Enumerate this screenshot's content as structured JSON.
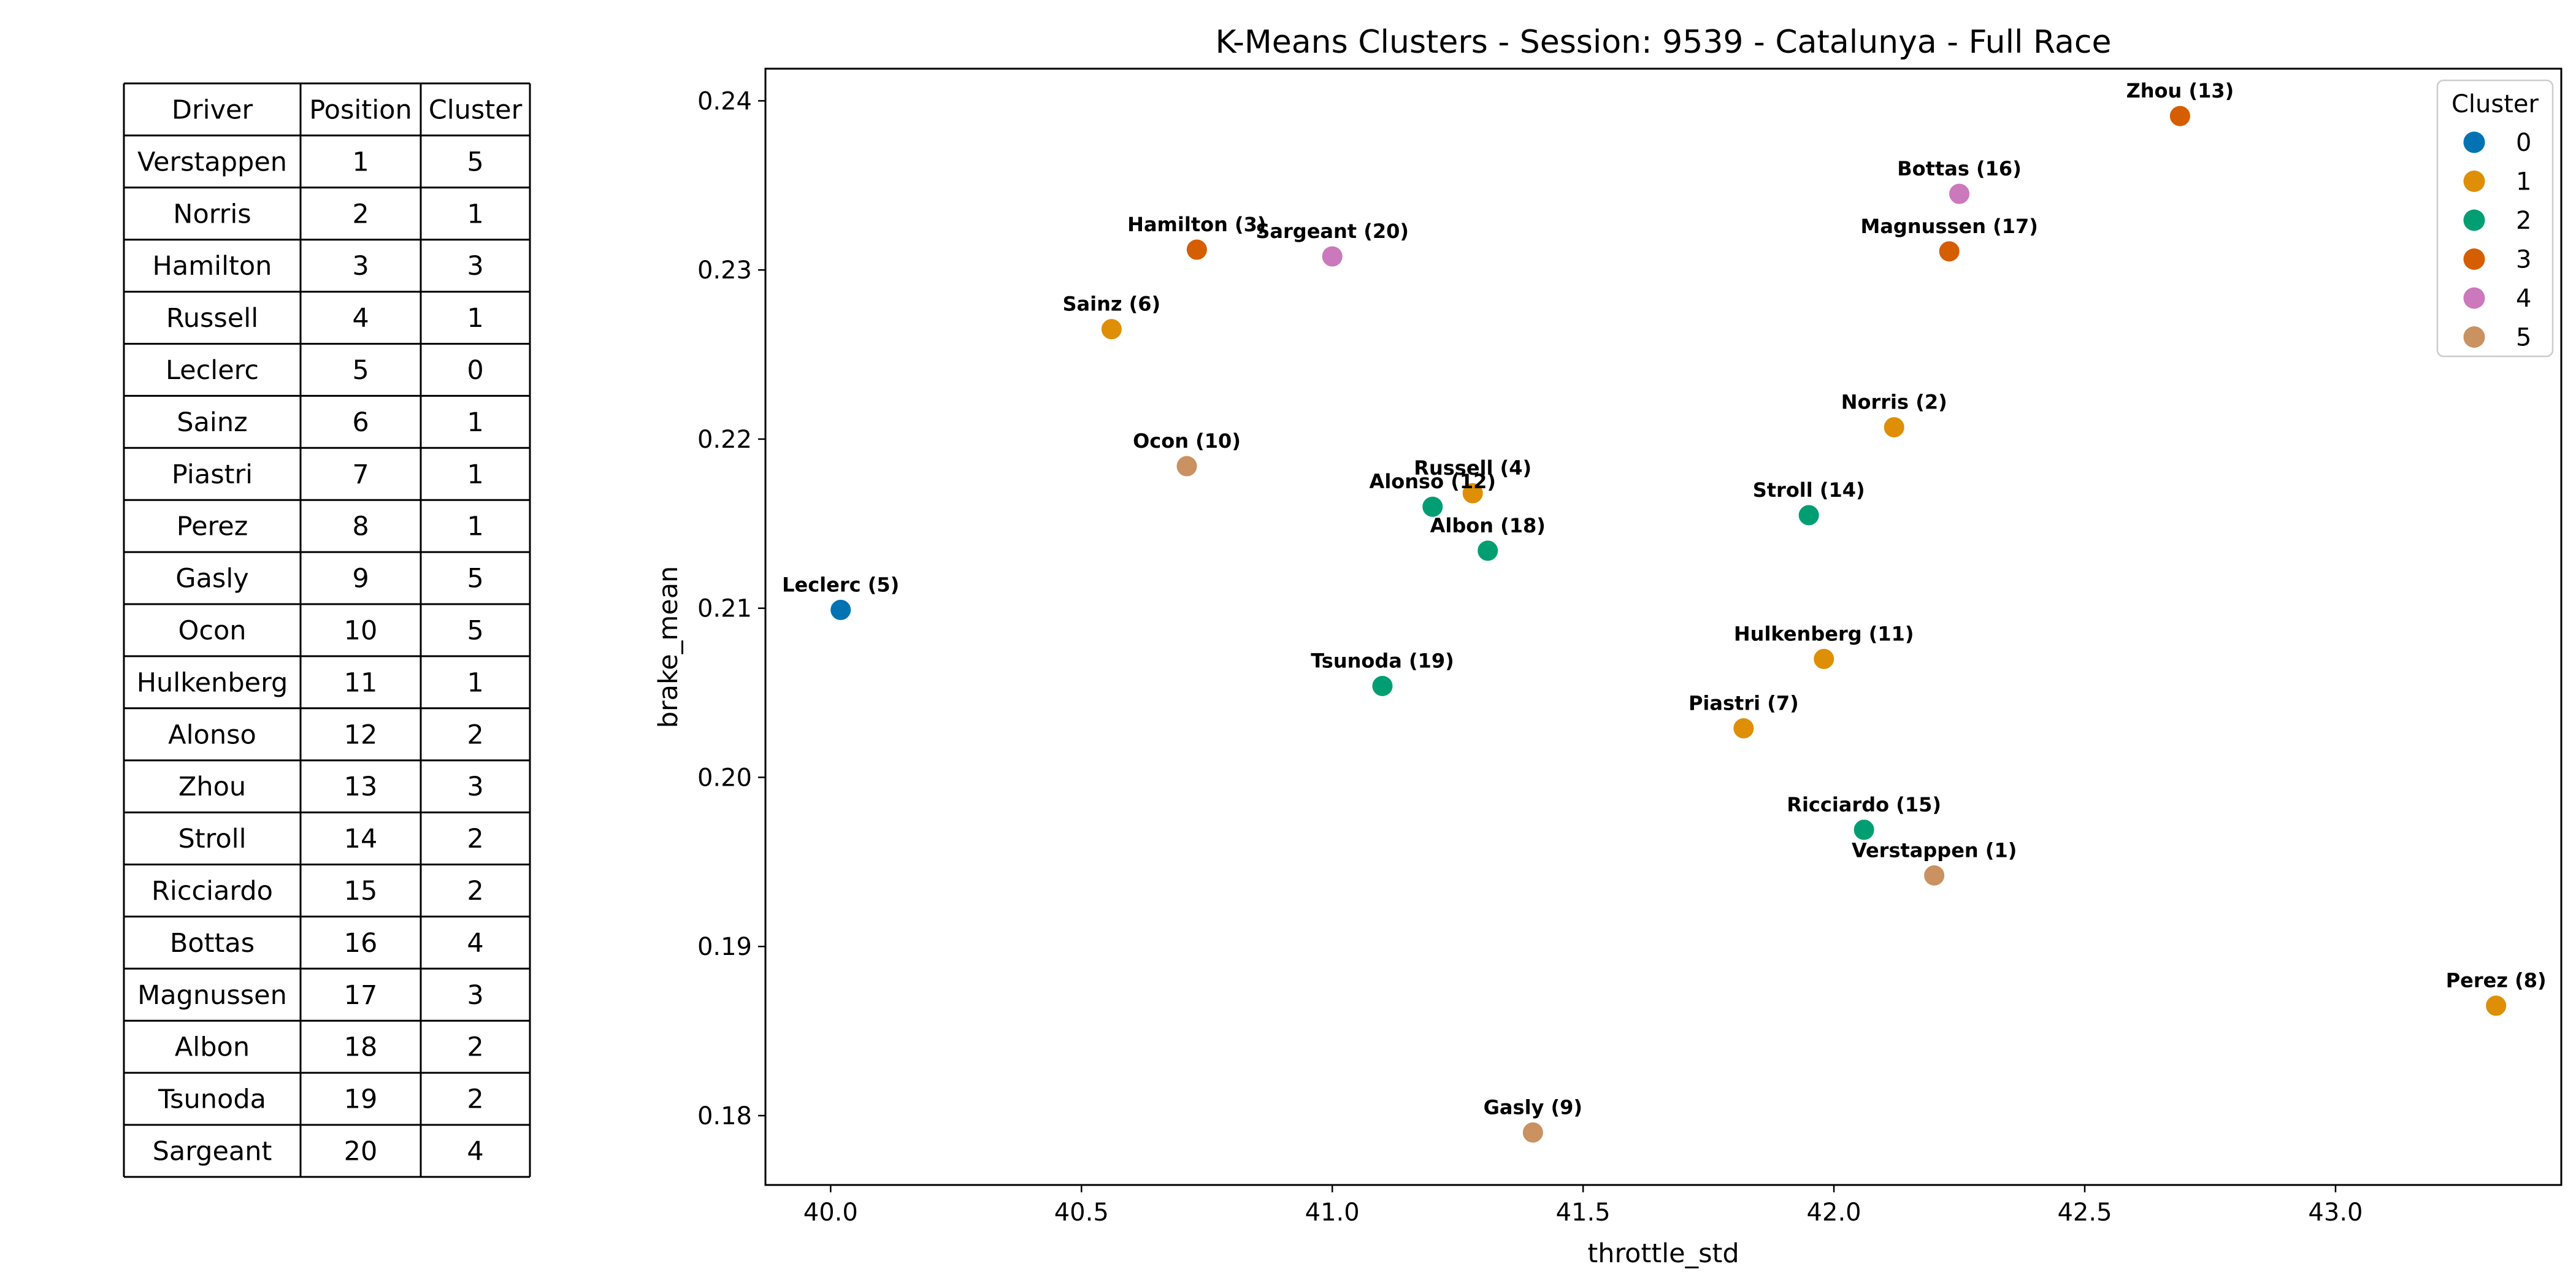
{
  "table": {
    "headers": [
      "Driver",
      "Position",
      "Cluster"
    ],
    "rows": [
      [
        "Verstappen",
        "1",
        "5"
      ],
      [
        "Norris",
        "2",
        "1"
      ],
      [
        "Hamilton",
        "3",
        "3"
      ],
      [
        "Russell",
        "4",
        "1"
      ],
      [
        "Leclerc",
        "5",
        "0"
      ],
      [
        "Sainz",
        "6",
        "1"
      ],
      [
        "Piastri",
        "7",
        "1"
      ],
      [
        "Perez",
        "8",
        "1"
      ],
      [
        "Gasly",
        "9",
        "5"
      ],
      [
        "Ocon",
        "10",
        "5"
      ],
      [
        "Hulkenberg",
        "11",
        "1"
      ],
      [
        "Alonso",
        "12",
        "2"
      ],
      [
        "Zhou",
        "13",
        "3"
      ],
      [
        "Stroll",
        "14",
        "2"
      ],
      [
        "Ricciardo",
        "15",
        "2"
      ],
      [
        "Bottas",
        "16",
        "4"
      ],
      [
        "Magnussen",
        "17",
        "3"
      ],
      [
        "Albon",
        "18",
        "2"
      ],
      [
        "Tsunoda",
        "19",
        "2"
      ],
      [
        "Sargeant",
        "20",
        "4"
      ]
    ]
  },
  "chart_data": {
    "type": "scatter",
    "title": "K-Means Clusters - Session: 9539 - Catalunya - Full Race",
    "xlabel": "throttle_std",
    "ylabel": "brake_mean",
    "xlim": [
      39.87,
      43.45
    ],
    "ylim": [
      0.1759,
      0.2419
    ],
    "xticks": [
      40.0,
      40.5,
      41.0,
      41.5,
      42.0,
      42.5,
      43.0
    ],
    "xtick_labels": [
      "40.0",
      "40.5",
      "41.0",
      "41.5",
      "42.0",
      "42.5",
      "43.0"
    ],
    "yticks": [
      0.18,
      0.19,
      0.2,
      0.21,
      0.22,
      0.23,
      0.24
    ],
    "ytick_labels": [
      "0.18",
      "0.19",
      "0.20",
      "0.21",
      "0.22",
      "0.23",
      "0.24"
    ],
    "grid": false,
    "legend": {
      "title": "Cluster",
      "placement": "top-right",
      "entries": [
        "0",
        "1",
        "2",
        "3",
        "4",
        "5"
      ]
    },
    "cluster_colors": [
      "#0173b2",
      "#de8f05",
      "#029e73",
      "#d55e00",
      "#cc78bc",
      "#ca9161"
    ],
    "points": [
      {
        "label": "Verstappen (1)",
        "x": 42.2,
        "y": 0.1942,
        "cluster": 5
      },
      {
        "label": "Norris (2)",
        "x": 42.12,
        "y": 0.2207,
        "cluster": 1
      },
      {
        "label": "Hamilton (3)",
        "x": 40.73,
        "y": 0.2312,
        "cluster": 3
      },
      {
        "label": "Russell (4)",
        "x": 41.28,
        "y": 0.2168,
        "cluster": 1
      },
      {
        "label": "Leclerc (5)",
        "x": 40.02,
        "y": 0.2099,
        "cluster": 0
      },
      {
        "label": "Sainz (6)",
        "x": 40.56,
        "y": 0.2265,
        "cluster": 1
      },
      {
        "label": "Piastri (7)",
        "x": 41.82,
        "y": 0.2029,
        "cluster": 1
      },
      {
        "label": "Perez (8)",
        "x": 43.32,
        "y": 0.1865,
        "cluster": 1
      },
      {
        "label": "Gasly (9)",
        "x": 41.4,
        "y": 0.179,
        "cluster": 5
      },
      {
        "label": "Ocon (10)",
        "x": 40.71,
        "y": 0.2184,
        "cluster": 5
      },
      {
        "label": "Hulkenberg (11)",
        "x": 41.98,
        "y": 0.207,
        "cluster": 1
      },
      {
        "label": "Alonso (12)",
        "x": 41.2,
        "y": 0.216,
        "cluster": 2
      },
      {
        "label": "Zhou (13)",
        "x": 42.69,
        "y": 0.2391,
        "cluster": 3
      },
      {
        "label": "Stroll (14)",
        "x": 41.95,
        "y": 0.2155,
        "cluster": 2
      },
      {
        "label": "Ricciardo (15)",
        "x": 42.06,
        "y": 0.1969,
        "cluster": 2
      },
      {
        "label": "Bottas (16)",
        "x": 42.25,
        "y": 0.2345,
        "cluster": 4
      },
      {
        "label": "Magnussen (17)",
        "x": 42.23,
        "y": 0.2311,
        "cluster": 3
      },
      {
        "label": "Albon (18)",
        "x": 41.31,
        "y": 0.2134,
        "cluster": 2
      },
      {
        "label": "Tsunoda (19)",
        "x": 41.1,
        "y": 0.2054,
        "cluster": 2
      },
      {
        "label": "Sargeant (20)",
        "x": 41.0,
        "y": 0.2308,
        "cluster": 4
      }
    ]
  }
}
